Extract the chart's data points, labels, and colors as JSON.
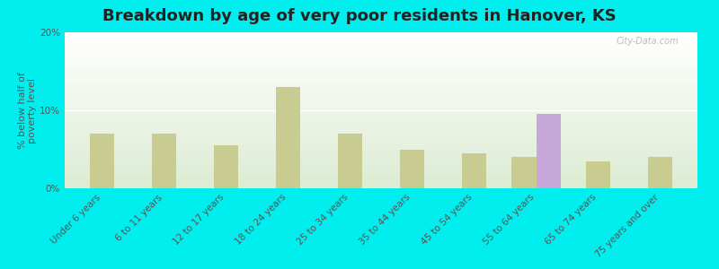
{
  "title": "Breakdown by age of very poor residents in Hanover, KS",
  "ylabel": "% below half of\npoverty level",
  "categories": [
    "Under 6 years",
    "6 to 11 years",
    "12 to 17 years",
    "18 to 24 years",
    "25 to 34 years",
    "35 to 44 years",
    "45 to 54 years",
    "55 to 64 years",
    "65 to 74 years",
    "75 years and over"
  ],
  "hanover_values": [
    null,
    null,
    null,
    null,
    null,
    null,
    null,
    9.5,
    null,
    null
  ],
  "kansas_values": [
    7.0,
    7.0,
    5.5,
    13.0,
    7.0,
    5.0,
    4.5,
    4.0,
    3.5,
    4.0
  ],
  "hanover_color": "#c8a8d8",
  "kansas_color": "#c8cc90",
  "background_color": "#00eeee",
  "ylim": [
    0,
    20
  ],
  "yticks": [
    0,
    10,
    20
  ],
  "ytick_labels": [
    "0%",
    "10%",
    "20%"
  ],
  "watermark": "City-Data.com",
  "bar_width": 0.4,
  "title_fontsize": 13,
  "label_fontsize": 7.5,
  "ylabel_fontsize": 8
}
